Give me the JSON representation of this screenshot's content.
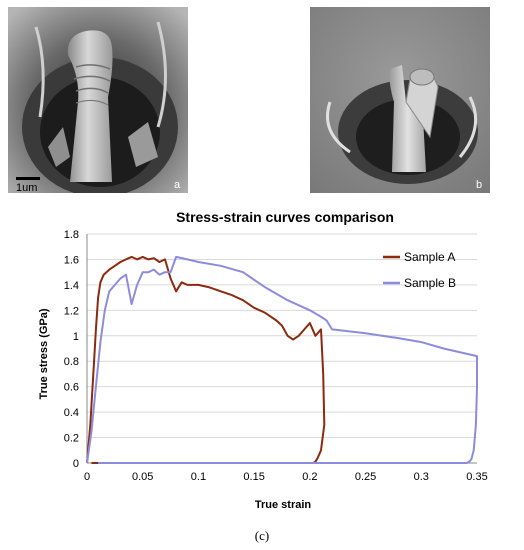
{
  "figure": {
    "panel_a": {
      "letter": "a",
      "scale_bar_label": "1um"
    },
    "panel_b": {
      "letter": "b"
    },
    "caption": "(c)"
  },
  "chart_data": {
    "type": "line",
    "title": "Stress-strain curves comparison",
    "xlabel": "True strain",
    "ylabel": "True stress (GPa)",
    "xlim": [
      0,
      0.35
    ],
    "ylim": [
      0,
      1.8
    ],
    "x_ticks": [
      "0",
      "0.05",
      "0.1",
      "0.15",
      "0.2",
      "0.25",
      "0.3",
      "0.35"
    ],
    "y_ticks": [
      "0",
      "0.2",
      "0.4",
      "0.6",
      "0.8",
      "1",
      "1.2",
      "1.4",
      "1.6",
      "1.8"
    ],
    "grid": "horizontal",
    "legend_position": "top-right",
    "series": [
      {
        "name": "Sample A",
        "color": "#8b2a0e",
        "x": [
          0,
          0.003,
          0.006,
          0.008,
          0.01,
          0.012,
          0.015,
          0.02,
          0.025,
          0.03,
          0.035,
          0.04,
          0.045,
          0.05,
          0.055,
          0.06,
          0.065,
          0.07,
          0.075,
          0.08,
          0.085,
          0.09,
          0.1,
          0.11,
          0.12,
          0.13,
          0.14,
          0.15,
          0.16,
          0.17,
          0.175,
          0.18,
          0.185,
          0.19,
          0.195,
          0.2,
          0.205,
          0.21,
          0.212,
          0.213,
          0.21,
          0.207,
          0.205,
          0.203,
          0.201,
          0.2,
          0.15,
          0.1,
          0.05,
          0.01,
          0.004
        ],
        "y": [
          0,
          0.3,
          0.75,
          1.05,
          1.3,
          1.42,
          1.48,
          1.52,
          1.55,
          1.58,
          1.6,
          1.62,
          1.6,
          1.62,
          1.6,
          1.61,
          1.58,
          1.6,
          1.45,
          1.35,
          1.42,
          1.4,
          1.4,
          1.38,
          1.35,
          1.32,
          1.28,
          1.22,
          1.18,
          1.12,
          1.08,
          1.0,
          0.97,
          1.0,
          1.05,
          1.1,
          1.0,
          1.05,
          0.7,
          0.3,
          0.1,
          0.04,
          0.01,
          0.0,
          0.0,
          0.0,
          0.0,
          0.0,
          0.0,
          0.0,
          0.0
        ]
      },
      {
        "name": "Sample B",
        "color": "#8c8cdc",
        "x": [
          0,
          0.004,
          0.008,
          0.012,
          0.016,
          0.02,
          0.025,
          0.03,
          0.035,
          0.04,
          0.045,
          0.05,
          0.055,
          0.06,
          0.065,
          0.07,
          0.075,
          0.08,
          0.09,
          0.1,
          0.12,
          0.14,
          0.16,
          0.18,
          0.2,
          0.21,
          0.215,
          0.22,
          0.25,
          0.28,
          0.3,
          0.32,
          0.34,
          0.35,
          0.35,
          0.349,
          0.347,
          0.345,
          0.343,
          0.341,
          0.3,
          0.2,
          0.1,
          0.02,
          0.01
        ],
        "y": [
          0,
          0.25,
          0.6,
          0.95,
          1.2,
          1.35,
          1.4,
          1.45,
          1.48,
          1.25,
          1.4,
          1.5,
          1.5,
          1.52,
          1.48,
          1.5,
          1.5,
          1.62,
          1.6,
          1.58,
          1.55,
          1.5,
          1.38,
          1.28,
          1.2,
          1.15,
          1.12,
          1.05,
          1.02,
          0.98,
          0.95,
          0.9,
          0.86,
          0.84,
          0.6,
          0.3,
          0.1,
          0.03,
          0.01,
          0.0,
          0.0,
          0.0,
          0.0,
          0.0,
          0.0
        ]
      }
    ]
  }
}
